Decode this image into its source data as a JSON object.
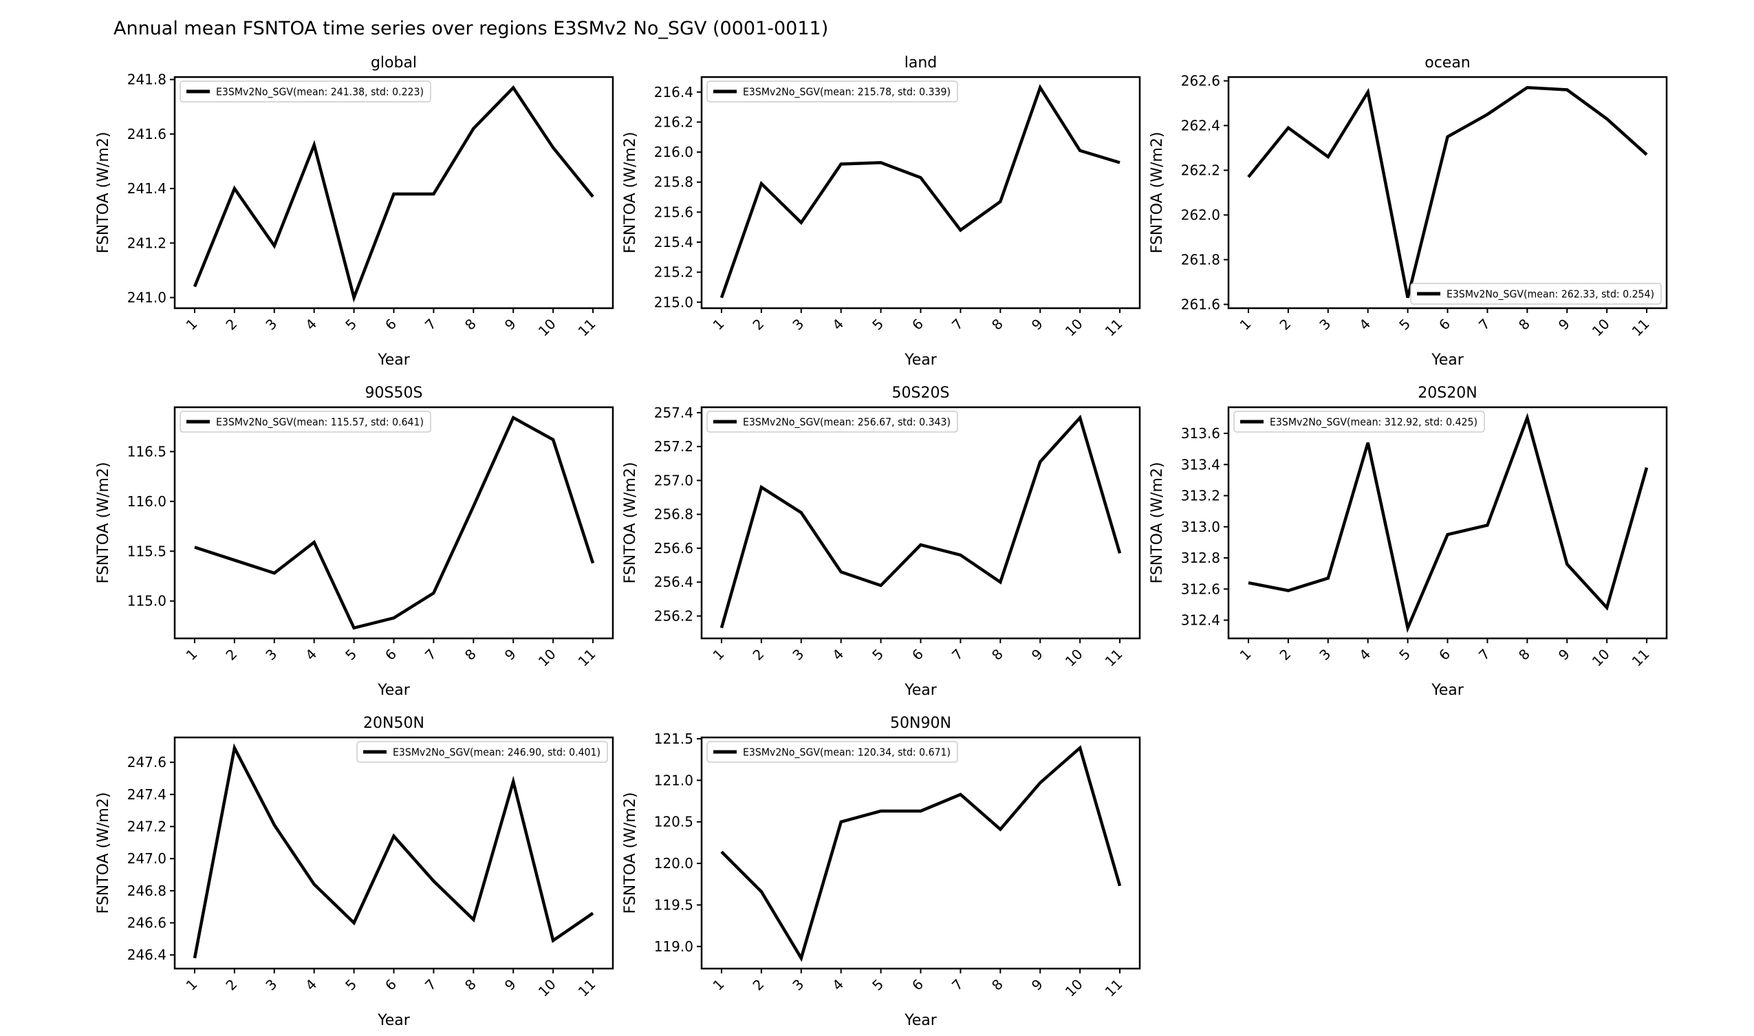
{
  "figure": {
    "title": "Annual mean FSNTOA time series over regions E3SMv2 No_SGV (0001-0011)",
    "background_color": "#ffffff",
    "line_color": "#000000",
    "legend_border_color": "#cccccc"
  },
  "chart_data": [
    {
      "type": "line",
      "title": "global",
      "xlabel": "Year",
      "ylabel": "FSNTOA (W/m2)",
      "legend_label": "E3SMv2No_SGV(mean: 241.38, std: 0.223)",
      "mean": 241.38,
      "std": 0.223,
      "legend_pos": "upper-left",
      "grid": false,
      "x": [
        1,
        2,
        3,
        4,
        5,
        6,
        7,
        8,
        9,
        10,
        11
      ],
      "values": [
        241.04,
        241.4,
        241.19,
        241.56,
        241.0,
        241.38,
        241.38,
        241.62,
        241.77,
        241.55,
        241.37
      ],
      "ylim": [
        240.961,
        241.809
      ],
      "yticks": [
        241.0,
        241.2,
        241.4,
        241.6,
        241.8
      ],
      "xlim": [
        0.5,
        11.5
      ]
    },
    {
      "type": "line",
      "title": "land",
      "xlabel": "Year",
      "ylabel": "FSNTOA (W/m2)",
      "legend_label": "E3SMv2No_SGV(mean: 215.78, std: 0.339)",
      "mean": 215.78,
      "std": 0.339,
      "legend_pos": "upper-left",
      "grid": false,
      "x": [
        1,
        2,
        3,
        4,
        5,
        6,
        7,
        8,
        9,
        10,
        11
      ],
      "values": [
        215.03,
        215.79,
        215.53,
        215.92,
        215.93,
        215.83,
        215.48,
        215.67,
        216.43,
        216.01,
        215.93
      ],
      "ylim": [
        214.96,
        216.5
      ],
      "yticks": [
        215.0,
        215.2,
        215.4,
        215.6,
        215.8,
        216.0,
        216.2,
        216.4
      ],
      "xlim": [
        0.5,
        11.5
      ]
    },
    {
      "type": "line",
      "title": "ocean",
      "xlabel": "Year",
      "ylabel": "FSNTOA (W/m2)",
      "legend_label": "E3SMv2No_SGV(mean: 262.33, std: 0.254)",
      "mean": 262.33,
      "std": 0.254,
      "legend_pos": "lower-right",
      "grid": false,
      "x": [
        1,
        2,
        3,
        4,
        5,
        6,
        7,
        8,
        9,
        10,
        11
      ],
      "values": [
        262.17,
        262.39,
        262.26,
        262.55,
        261.63,
        262.35,
        262.45,
        262.57,
        262.56,
        262.43,
        262.27
      ],
      "ylim": [
        261.583,
        262.617
      ],
      "yticks": [
        261.6,
        261.8,
        262.0,
        262.2,
        262.4,
        262.6
      ],
      "xlim": [
        0.5,
        11.5
      ]
    },
    {
      "type": "line",
      "title": "90S50S",
      "xlabel": "Year",
      "ylabel": "FSNTOA (W/m2)",
      "legend_label": "E3SMv2No_SGV(mean: 115.57, std: 0.641)",
      "mean": 115.57,
      "std": 0.641,
      "legend_pos": "upper-left",
      "grid": false,
      "x": [
        1,
        2,
        3,
        4,
        5,
        6,
        7,
        8,
        9,
        10,
        11
      ],
      "values": [
        115.54,
        115.41,
        115.28,
        115.59,
        114.73,
        114.83,
        115.08,
        115.95,
        116.84,
        116.62,
        115.38
      ],
      "ylim": [
        114.625,
        116.945
      ],
      "yticks": [
        115.0,
        115.5,
        116.0,
        116.5
      ],
      "xlim": [
        0.5,
        11.5
      ]
    },
    {
      "type": "line",
      "title": "50S20S",
      "xlabel": "Year",
      "ylabel": "FSNTOA (W/m2)",
      "legend_label": "E3SMv2No_SGV(mean: 256.67, std: 0.343)",
      "mean": 256.67,
      "std": 0.343,
      "legend_pos": "upper-left",
      "grid": false,
      "x": [
        1,
        2,
        3,
        4,
        5,
        6,
        7,
        8,
        9,
        10,
        11
      ],
      "values": [
        256.13,
        256.96,
        256.81,
        256.46,
        256.38,
        256.62,
        256.56,
        256.4,
        257.11,
        257.37,
        256.57
      ],
      "ylim": [
        256.068,
        257.432
      ],
      "yticks": [
        256.2,
        256.4,
        256.6,
        256.8,
        257.0,
        257.2,
        257.4
      ],
      "xlim": [
        0.5,
        11.5
      ]
    },
    {
      "type": "line",
      "title": "20S20N",
      "xlabel": "Year",
      "ylabel": "FSNTOA (W/m2)",
      "legend_label": "E3SMv2No_SGV(mean: 312.92, std: 0.425)",
      "mean": 312.92,
      "std": 0.425,
      "legend_pos": "upper-left",
      "grid": false,
      "x": [
        1,
        2,
        3,
        4,
        5,
        6,
        7,
        8,
        9,
        10,
        11
      ],
      "values": [
        312.64,
        312.59,
        312.67,
        313.54,
        312.35,
        312.95,
        313.01,
        313.7,
        312.76,
        312.48,
        313.38
      ],
      "ylim": [
        312.283,
        313.768
      ],
      "yticks": [
        312.4,
        312.6,
        312.8,
        313.0,
        313.2,
        313.4,
        313.6
      ],
      "xlim": [
        0.5,
        11.5
      ]
    },
    {
      "type": "line",
      "title": "20N50N",
      "xlabel": "Year",
      "ylabel": "FSNTOA (W/m2)",
      "legend_label": "E3SMv2No_SGV(mean: 246.90, std: 0.401)",
      "mean": 246.9,
      "std": 0.401,
      "legend_pos": "upper-right",
      "grid": false,
      "x": [
        1,
        2,
        3,
        4,
        5,
        6,
        7,
        8,
        9,
        10,
        11
      ],
      "values": [
        246.38,
        247.69,
        247.21,
        246.84,
        246.6,
        247.14,
        246.86,
        246.62,
        247.48,
        246.49,
        246.66
      ],
      "ylim": [
        246.315,
        247.755
      ],
      "yticks": [
        246.4,
        246.6,
        246.8,
        247.0,
        247.2,
        247.4,
        247.6
      ],
      "xlim": [
        0.5,
        11.5
      ]
    },
    {
      "type": "line",
      "title": "50N90N",
      "xlabel": "Year",
      "ylabel": "FSNTOA (W/m2)",
      "legend_label": "E3SMv2No_SGV(mean: 120.34, std: 0.671)",
      "mean": 120.34,
      "std": 0.671,
      "legend_pos": "upper-left",
      "grid": false,
      "x": [
        1,
        2,
        3,
        4,
        5,
        6,
        7,
        8,
        9,
        10,
        11
      ],
      "values": [
        120.14,
        119.66,
        118.86,
        120.5,
        120.63,
        120.63,
        120.83,
        120.41,
        120.97,
        121.39,
        119.73
      ],
      "ylim": [
        118.734,
        121.516
      ],
      "yticks": [
        119.0,
        119.5,
        120.0,
        120.5,
        121.0,
        121.5
      ],
      "xlim": [
        0.5,
        11.5
      ]
    }
  ]
}
